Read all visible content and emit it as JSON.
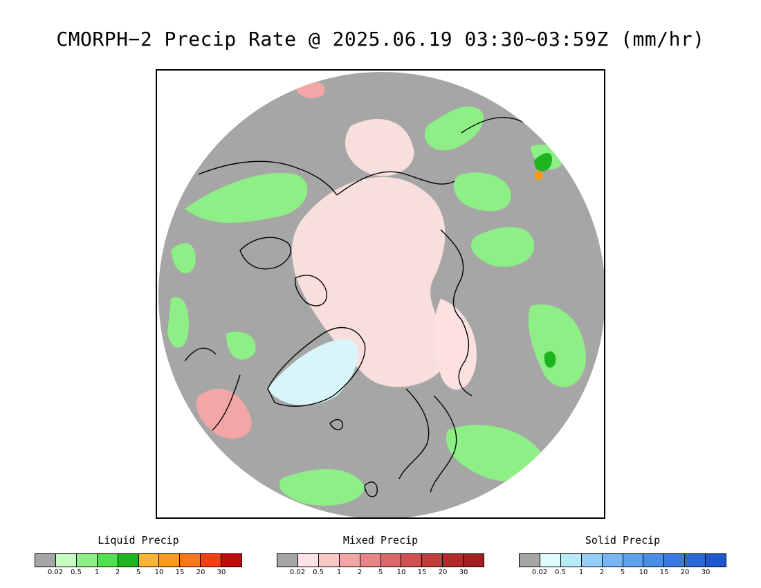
{
  "title": "CMORPH−2 Precip Rate @ 2025.06.19 03:30~03:59Z (mm/hr)",
  "legends": [
    {
      "title": "Liquid Precip",
      "colors": [
        "#a6a6a6",
        "#c6fbc2",
        "#8eef87",
        "#50e150",
        "#1fb31f",
        "#f8b533",
        "#f89c1a",
        "#f8771c",
        "#f83f14",
        "#c30a0a"
      ],
      "ticks": [
        "0.02",
        "0.5",
        "1",
        "2",
        "5",
        "10",
        "15",
        "20",
        "30"
      ]
    },
    {
      "title": "Mixed Precip",
      "colors": [
        "#a6a6a6",
        "#fde4e4",
        "#fbc8c8",
        "#f3a6a6",
        "#e88686",
        "#db6868",
        "#d24f4f",
        "#c33a3a",
        "#b32a2a",
        "#a31f1f"
      ],
      "ticks": [
        "0.02",
        "0.5",
        "1",
        "2",
        "5",
        "10",
        "15",
        "20",
        "30"
      ]
    },
    {
      "title": "Solid Precip",
      "colors": [
        "#a6a6a6",
        "#e0fcfc",
        "#b6ecf8",
        "#96cdf8",
        "#78b6f4",
        "#5ea2ef",
        "#4a8ee8",
        "#3a7ae0",
        "#2a68d8",
        "#1e58cf"
      ],
      "ticks": [
        "0.02",
        "0.5",
        "1",
        "2",
        "5",
        "10",
        "15",
        "20",
        "30"
      ]
    }
  ],
  "map": {
    "background_color": "#a6a6a6",
    "liquid_color": "#8eef87",
    "liquid_heavy_color": "#1fb31f",
    "liquid_orange_color": "#f89c1a",
    "mixed_color": "#fde0e0",
    "mixed_medium_color": "#f3a6a6",
    "solid_color": "#d8f6fa"
  }
}
